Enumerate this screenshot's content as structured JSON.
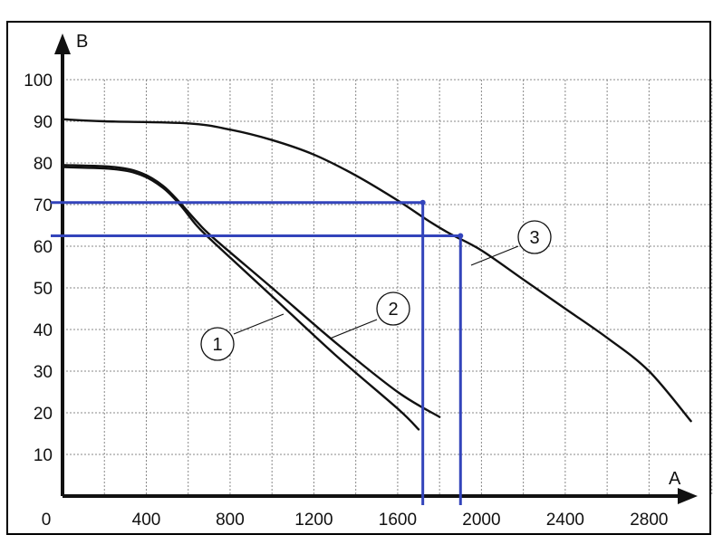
{
  "chart_data": {
    "type": "line",
    "xlabel": "A",
    "ylabel": "B",
    "xlim": [
      0,
      3100
    ],
    "ylim": [
      0,
      100
    ],
    "x_ticks": [
      0,
      400,
      800,
      1200,
      1600,
      2000,
      2400,
      2800
    ],
    "x_tick_labels": [
      "0",
      "400",
      "800",
      "1200",
      "1600",
      "2000",
      "2400",
      "2800"
    ],
    "y_ticks": [
      10,
      20,
      30,
      40,
      50,
      60,
      70,
      80,
      90,
      100
    ],
    "y_tick_labels": [
      "10",
      "20",
      "30",
      "40",
      "50",
      "60",
      "70",
      "80",
      "90",
      "100"
    ],
    "grid": true,
    "series": [
      {
        "name": "1",
        "x": [
          0,
          250,
          380,
          480,
          560,
          640,
          720,
          1000,
          1300,
          1600,
          1700
        ],
        "y": [
          79,
          78.5,
          77,
          74,
          70,
          65,
          61,
          48,
          34,
          21,
          16
        ]
      },
      {
        "name": "2",
        "x": [
          0,
          250,
          380,
          480,
          560,
          640,
          720,
          1000,
          1300,
          1600,
          1800
        ],
        "y": [
          79.5,
          79,
          77.5,
          74.5,
          70.5,
          66,
          62,
          50,
          37,
          25,
          19
        ]
      },
      {
        "name": "3",
        "x": [
          0,
          200,
          600,
          800,
          1000,
          1200,
          1400,
          1600,
          1750,
          1850,
          2000,
          2200,
          2400,
          2600,
          2800,
          3000
        ],
        "y": [
          90.5,
          90,
          89.5,
          88,
          85.5,
          82,
          77,
          71,
          66,
          63,
          59,
          52,
          45,
          38,
          30,
          18
        ]
      }
    ],
    "reference_points": [
      {
        "x": 1720,
        "y": 70.5
      },
      {
        "x": 1900,
        "y": 62.5
      }
    ],
    "callouts": [
      "1",
      "2",
      "3"
    ],
    "colors": {
      "curve": "#111111",
      "reference": "#3344bb",
      "grid": "#888888"
    }
  }
}
